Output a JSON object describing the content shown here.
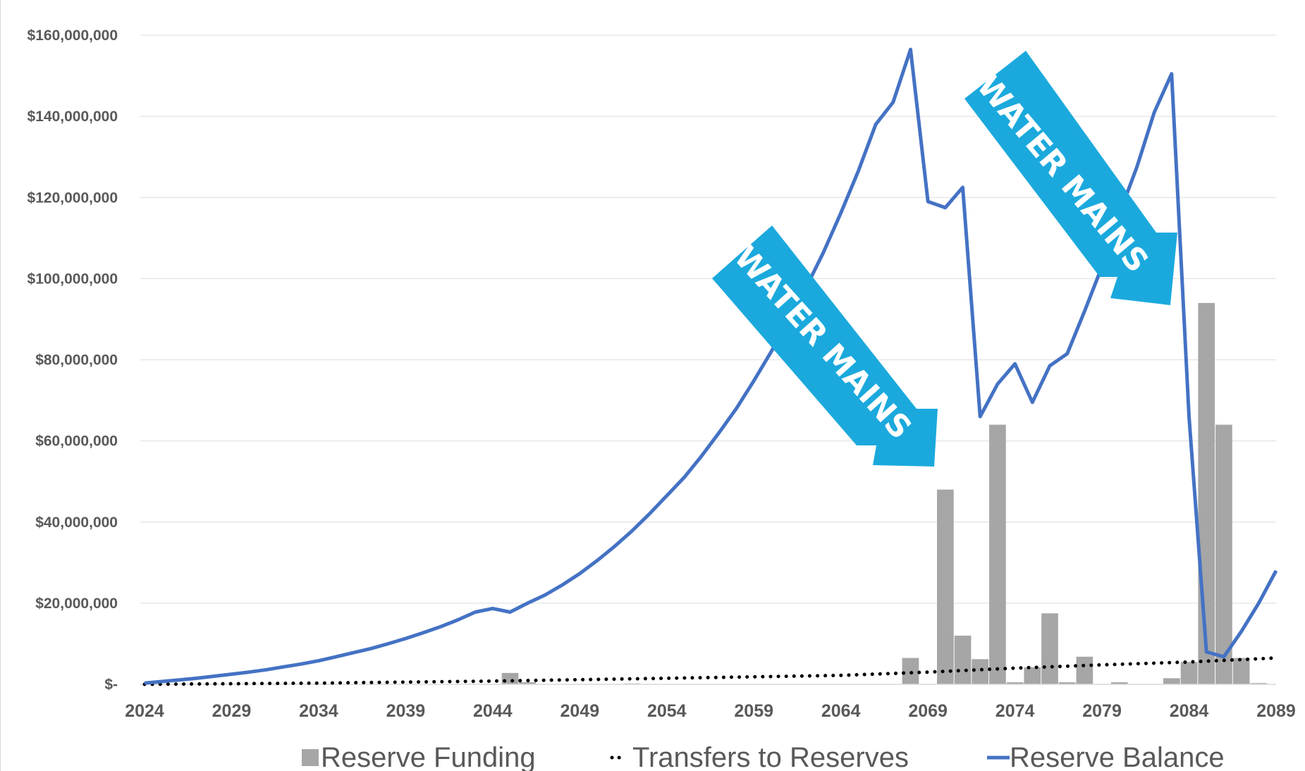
{
  "chart_data": {
    "type": "bar",
    "y_ticks": [
      "$160,000,000",
      "$140,000,000",
      "$120,000,000",
      "$100,000,000",
      "$80,000,000",
      "$60,000,000",
      "$40,000,000",
      "$20,000,000",
      "$-"
    ],
    "x_ticks": [
      "2024",
      "2029",
      "2034",
      "2039",
      "2044",
      "2049",
      "2054",
      "2059",
      "2064",
      "2069",
      "2074",
      "2079",
      "2084",
      "2089"
    ],
    "ylim": [
      0,
      160000000
    ],
    "xlim": [
      2024,
      2089
    ],
    "grid": true,
    "legend_position": "bottom",
    "series": [
      {
        "name": "Reserve Funding",
        "kind": "bar",
        "color": "#a6a6a6",
        "points": [
          [
            2045,
            2800000
          ],
          [
            2046,
            500000
          ],
          [
            2052,
            200000
          ],
          [
            2068,
            6500000
          ],
          [
            2070,
            48000000
          ],
          [
            2071,
            12000000
          ],
          [
            2072,
            6200000
          ],
          [
            2073,
            64000000
          ],
          [
            2074,
            500000
          ],
          [
            2075,
            4200000
          ],
          [
            2076,
            17500000
          ],
          [
            2077,
            500000
          ],
          [
            2078,
            6800000
          ],
          [
            2080,
            500000
          ],
          [
            2083,
            1500000
          ],
          [
            2084,
            5500000
          ],
          [
            2085,
            94000000
          ],
          [
            2086,
            64000000
          ],
          [
            2087,
            6500000
          ],
          [
            2088,
            300000
          ]
        ]
      },
      {
        "name": "Transfers to Reserves",
        "kind": "dotted-line",
        "color": "#000000",
        "points": [
          [
            2024,
            0
          ],
          [
            2034,
            300000
          ],
          [
            2044,
            800000
          ],
          [
            2054,
            1500000
          ],
          [
            2064,
            2200000
          ],
          [
            2069,
            3000000
          ],
          [
            2074,
            4000000
          ],
          [
            2079,
            4800000
          ],
          [
            2084,
            5500000
          ],
          [
            2089,
            6500000
          ]
        ]
      },
      {
        "name": "Reserve Balance",
        "kind": "line",
        "color": "#4472c4",
        "points": [
          [
            2024,
            300000
          ],
          [
            2025,
            700000
          ],
          [
            2026,
            1100000
          ],
          [
            2027,
            1500000
          ],
          [
            2028,
            2000000
          ],
          [
            2029,
            2500000
          ],
          [
            2030,
            3000000
          ],
          [
            2031,
            3600000
          ],
          [
            2032,
            4300000
          ],
          [
            2033,
            5000000
          ],
          [
            2034,
            5800000
          ],
          [
            2035,
            6800000
          ],
          [
            2036,
            7800000
          ],
          [
            2037,
            8800000
          ],
          [
            2038,
            10000000
          ],
          [
            2039,
            11300000
          ],
          [
            2040,
            12700000
          ],
          [
            2041,
            14200000
          ],
          [
            2042,
            15900000
          ],
          [
            2043,
            17800000
          ],
          [
            2044,
            18700000
          ],
          [
            2045,
            17800000
          ],
          [
            2046,
            20000000
          ],
          [
            2047,
            22000000
          ],
          [
            2048,
            24500000
          ],
          [
            2049,
            27300000
          ],
          [
            2050,
            30500000
          ],
          [
            2051,
            34000000
          ],
          [
            2052,
            37800000
          ],
          [
            2053,
            42000000
          ],
          [
            2054,
            46500000
          ],
          [
            2055,
            51000000
          ],
          [
            2056,
            56300000
          ],
          [
            2057,
            62000000
          ],
          [
            2058,
            68000000
          ],
          [
            2059,
            74800000
          ],
          [
            2060,
            82000000
          ],
          [
            2061,
            89500000
          ],
          [
            2062,
            97800000
          ],
          [
            2063,
            106500000
          ],
          [
            2064,
            116200000
          ],
          [
            2065,
            126500000
          ],
          [
            2066,
            138000000
          ],
          [
            2067,
            143500000
          ],
          [
            2068,
            156500000
          ],
          [
            2069,
            119000000
          ],
          [
            2070,
            117500000
          ],
          [
            2071,
            122500000
          ],
          [
            2072,
            66000000
          ],
          [
            2073,
            74000000
          ],
          [
            2074,
            79000000
          ],
          [
            2075,
            69500000
          ],
          [
            2076,
            78500000
          ],
          [
            2077,
            81500000
          ],
          [
            2078,
            92000000
          ],
          [
            2079,
            103000000
          ],
          [
            2080,
            116000000
          ],
          [
            2081,
            127500000
          ],
          [
            2082,
            141000000
          ],
          [
            2083,
            150500000
          ],
          [
            2084,
            66000000
          ],
          [
            2085,
            8000000
          ],
          [
            2086,
            6800000
          ],
          [
            2087,
            13000000
          ],
          [
            2088,
            20000000
          ],
          [
            2089,
            28000000
          ]
        ]
      }
    ],
    "annotations": [
      {
        "text": "WATER MAINS",
        "shape": "arrow",
        "direction": "down-right",
        "color": "#1ba9dd"
      },
      {
        "text": "WATER MAINS",
        "shape": "arrow",
        "direction": "down-right",
        "color": "#1ba9dd"
      }
    ]
  }
}
